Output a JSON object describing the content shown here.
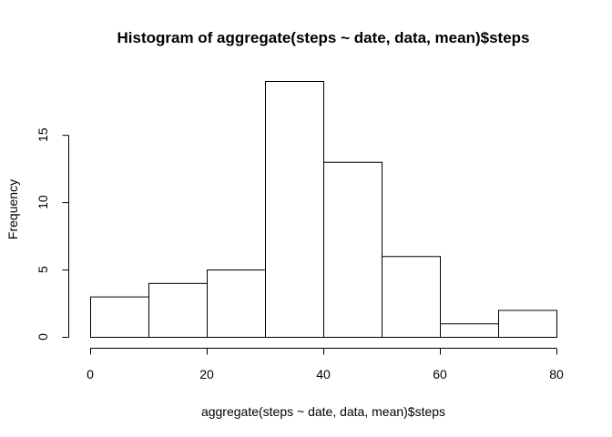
{
  "chart_data": {
    "type": "bar",
    "title": "Histogram of aggregate(steps ~ date, data, mean)$steps",
    "xlabel": "aggregate(steps ~ date, data, mean)$steps",
    "ylabel": "Frequency",
    "bins": [
      {
        "from": 0,
        "to": 10,
        "count": 3
      },
      {
        "from": 10,
        "to": 20,
        "count": 4
      },
      {
        "from": 20,
        "to": 30,
        "count": 5
      },
      {
        "from": 30,
        "to": 40,
        "count": 19
      },
      {
        "from": 40,
        "to": 50,
        "count": 13
      },
      {
        "from": 50,
        "to": 60,
        "count": 6
      },
      {
        "from": 60,
        "to": 70,
        "count": 1
      },
      {
        "from": 70,
        "to": 80,
        "count": 2
      }
    ],
    "xlim": [
      0,
      80
    ],
    "ylim": [
      0,
      19
    ],
    "xticks": [
      0,
      20,
      40,
      60,
      80
    ],
    "yticks": [
      0,
      5,
      10,
      15
    ],
    "grid": false,
    "legend": "none",
    "colors": {
      "bar_fill": "#ffffff",
      "bar_stroke": "#000000"
    }
  }
}
